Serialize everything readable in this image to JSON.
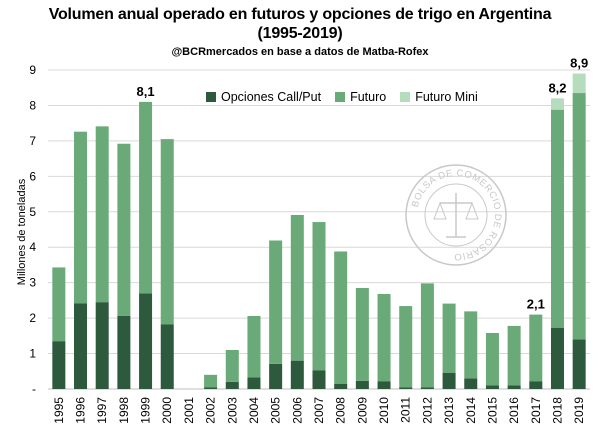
{
  "title_line1": "Volumen anual operado en futuros y opciones de trigo en Argentina",
  "title_line2": "(1995-2019)",
  "subtitle": "@BCRmercados en base a datos de Matba-Rofex",
  "watermark_text": "BOLSA DE COMERCIO DE ROSARIO",
  "chart_data": {
    "type": "bar",
    "stacked": true,
    "ylabel": "Millones de toneladas",
    "ylim": [
      0,
      9
    ],
    "yticks": [
      "-",
      "1",
      "2",
      "3",
      "4",
      "5",
      "6",
      "7",
      "8",
      "9"
    ],
    "categories": [
      "1995",
      "1996",
      "1997",
      "1998",
      "1999",
      "2000",
      "2001",
      "2002",
      "2003",
      "2004",
      "2005",
      "2006",
      "2007",
      "2008",
      "2009",
      "2010",
      "2011",
      "2012",
      "2013",
      "2014",
      "2015",
      "2016",
      "2017",
      "2018",
      "2019"
    ],
    "series": [
      {
        "name": "Opciones Call/Put",
        "color": "#2d5a3c",
        "values": [
          1.35,
          2.42,
          2.45,
          2.06,
          2.7,
          1.82,
          0.0,
          0.05,
          0.2,
          0.33,
          0.71,
          0.8,
          0.53,
          0.15,
          0.23,
          0.22,
          0.05,
          0.05,
          0.46,
          0.3,
          0.1,
          0.1,
          0.22,
          1.73,
          1.4
        ]
      },
      {
        "name": "Futuro",
        "color": "#6aaa78",
        "values": [
          2.08,
          4.84,
          4.96,
          4.86,
          5.4,
          5.23,
          0.0,
          0.35,
          0.9,
          1.73,
          3.48,
          4.11,
          4.18,
          3.73,
          2.62,
          2.46,
          2.29,
          2.93,
          1.95,
          1.89,
          1.48,
          1.68,
          1.88,
          6.15,
          6.95
        ]
      },
      {
        "name": "Futuro Mini",
        "color": "#b5dcbc",
        "values": [
          0,
          0,
          0,
          0,
          0,
          0,
          0,
          0,
          0,
          0,
          0,
          0,
          0,
          0,
          0,
          0,
          0,
          0,
          0,
          0,
          0,
          0,
          0,
          0.32,
          0.55
        ]
      }
    ],
    "data_labels": [
      {
        "category": "1999",
        "text": "8,1"
      },
      {
        "category": "2017",
        "text": "2,1"
      },
      {
        "category": "2018",
        "text": "8,2"
      },
      {
        "category": "2019",
        "text": "8,9"
      }
    ],
    "grid": "horizontal",
    "legend_position": "top-center"
  }
}
